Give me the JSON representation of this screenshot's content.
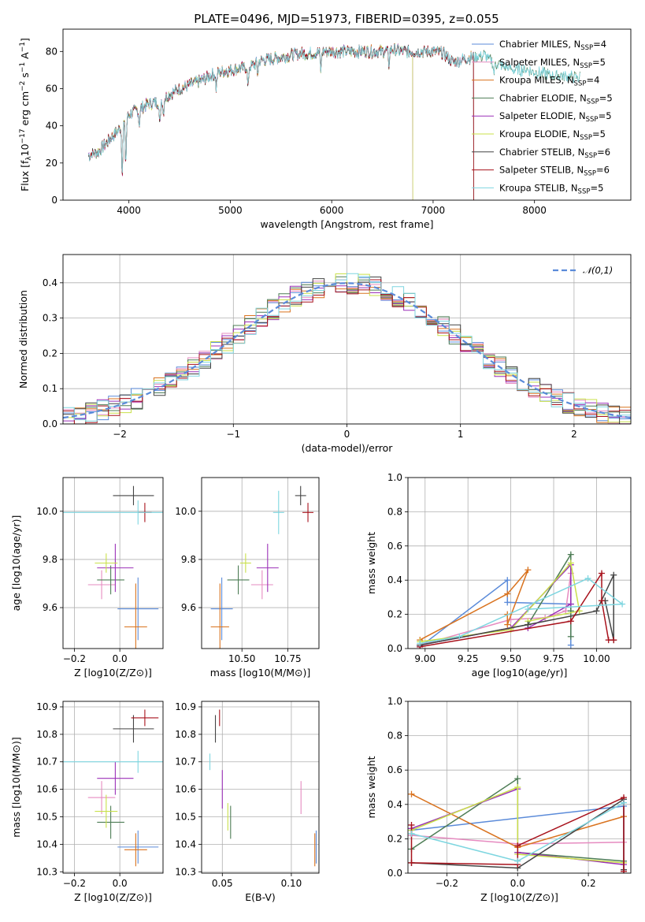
{
  "figure": {
    "title": "PLATE=0496, MJD=51973, FIBERID=0395, z=0.055"
  },
  "series_styles": [
    {
      "name": "Chabrier MILES",
      "color": "#5b8bd9",
      "nssp": "4"
    },
    {
      "name": "Salpeter MILES",
      "color": "#e68bc0",
      "nssp": "5"
    },
    {
      "name": "Kroupa MILES",
      "color": "#d9731f",
      "nssp": "4"
    },
    {
      "name": "Chabrier ELODIE",
      "color": "#4e7d56",
      "nssp": "5"
    },
    {
      "name": "Salpeter ELODIE",
      "color": "#9b30b8",
      "nssp": "5"
    },
    {
      "name": "Kroupa ELODIE",
      "color": "#c9e04a",
      "nssp": "5"
    },
    {
      "name": "Chabrier STELIB",
      "color": "#444444",
      "nssp": "6"
    },
    {
      "name": "Salpeter STELIB",
      "color": "#a8121c",
      "nssp": "6"
    },
    {
      "name": "Kroupa STELIB",
      "color": "#7ed6e0",
      "nssp": "5"
    }
  ],
  "chart_data": [
    {
      "id": "spectrum",
      "type": "line",
      "xlabel": "wavelength [Angstrom, rest frame]",
      "ylabel": "Flux [f_λ10^-17 erg cm^-2 s^-1 A^-1]",
      "xlim": [
        3350,
        8950
      ],
      "ylim": [
        0,
        92
      ],
      "xticks": [
        4000,
        5000,
        6000,
        7000,
        8000
      ],
      "yticks": [
        0,
        20,
        40,
        60,
        80
      ],
      "continuum": [
        [
          3600,
          24
        ],
        [
          3700,
          26
        ],
        [
          3800,
          32
        ],
        [
          3900,
          38
        ],
        [
          4000,
          46
        ],
        [
          4100,
          49
        ],
        [
          4200,
          52
        ],
        [
          4300,
          53
        ],
        [
          4400,
          57
        ],
        [
          4500,
          60
        ],
        [
          4600,
          62
        ],
        [
          4700,
          64
        ],
        [
          4800,
          67
        ],
        [
          4900,
          69
        ],
        [
          5000,
          70
        ],
        [
          5100,
          71
        ],
        [
          5200,
          72
        ],
        [
          5300,
          75
        ],
        [
          5400,
          76
        ],
        [
          5500,
          77
        ],
        [
          5600,
          78
        ],
        [
          5700,
          79
        ],
        [
          5800,
          79
        ],
        [
          5900,
          80
        ],
        [
          6000,
          80
        ],
        [
          6100,
          80
        ],
        [
          6200,
          80
        ],
        [
          6300,
          80
        ],
        [
          6400,
          80
        ],
        [
          6500,
          80
        ],
        [
          6600,
          81
        ],
        [
          6700,
          80
        ],
        [
          6800,
          80
        ],
        [
          6900,
          80
        ],
        [
          7000,
          80
        ],
        [
          7100,
          79
        ],
        [
          7200,
          74
        ],
        [
          7300,
          76
        ],
        [
          7400,
          77
        ],
        [
          7500,
          78
        ],
        [
          7600,
          74
        ],
        [
          7700,
          72
        ],
        [
          7800,
          70
        ],
        [
          7900,
          70
        ],
        [
          8000,
          69
        ],
        [
          8100,
          68
        ],
        [
          8200,
          67
        ],
        [
          8300,
          67
        ],
        [
          8400,
          66
        ]
      ],
      "absorption_dips": [
        [
          3934,
          26
        ],
        [
          3969,
          24
        ],
        [
          4102,
          8
        ],
        [
          4305,
          14
        ],
        [
          4340,
          8
        ],
        [
          4861,
          8
        ],
        [
          5175,
          12
        ],
        [
          5270,
          6
        ],
        [
          5893,
          10
        ],
        [
          6563,
          8
        ],
        [
          7600,
          6
        ]
      ],
      "end_wavelength": [
        7400,
        7400,
        7400,
        8450,
        6800,
        6800,
        7400,
        7400,
        8450
      ],
      "legend_location": "upper right",
      "legend_entries": [
        "Chabrier MILES, N_SSP=4",
        "Salpeter MILES, N_SSP=5",
        "Kroupa MILES, N_SSP=4",
        "Chabrier ELODIE, N_SSP=5",
        "Salpeter ELODIE, N_SSP=5",
        "Kroupa ELODIE, N_SSP=5",
        "Chabrier STELIB, N_SSP=6",
        "Salpeter STELIB, N_SSP=6",
        "Kroupa STELIB, N_SSP=5"
      ]
    },
    {
      "id": "residuals",
      "type": "histogram",
      "xlabel": "(data-model)/error",
      "ylabel": "Normed distribution",
      "xlim": [
        -2.5,
        2.5
      ],
      "ylim": [
        0,
        0.48
      ],
      "xticks": [
        -2,
        -1,
        0,
        1,
        2
      ],
      "yticks": [
        0.0,
        0.1,
        0.2,
        0.3,
        0.4
      ],
      "grid": true,
      "bin_width": 0.1,
      "reference_curve": {
        "label": "𝒩(0,1)",
        "style": "dashed",
        "color": "#5b8bd9"
      },
      "legend_location": "upper right"
    },
    {
      "id": "age_vs_Z",
      "type": "scatter",
      "xlabel": "Z [log10(Z/Z⊙)]",
      "ylabel": "age [log10(age/yr)]",
      "xlim": [
        -0.25,
        0.19
      ],
      "ylim": [
        9.43,
        10.14
      ],
      "xticks": [
        -0.2,
        0.0
      ],
      "yticks": [
        9.6,
        9.8,
        10.0
      ],
      "grid": true,
      "points": [
        {
          "x": 0.08,
          "y": 9.595,
          "xerr": 0.09,
          "yerr": 0.13
        },
        {
          "x": -0.08,
          "y": 9.695,
          "xerr": 0.06,
          "yerr": 0.06
        },
        {
          "x": 0.07,
          "y": 9.52,
          "xerr": 0.05,
          "yerr": 0.18
        },
        {
          "x": -0.04,
          "y": 9.715,
          "xerr": 0.06,
          "yerr": 0.06
        },
        {
          "x": -0.02,
          "y": 9.765,
          "xerr": 0.08,
          "yerr": 0.1
        },
        {
          "x": -0.06,
          "y": 9.785,
          "xerr": 0.05,
          "yerr": 0.04
        },
        {
          "x": 0.06,
          "y": 10.065,
          "xerr": 0.09,
          "yerr": 0.04
        },
        {
          "x": 0.11,
          "y": 9.995,
          "xerr": 0.03,
          "yerr": 0.04
        },
        {
          "x": 0.08,
          "y": 9.995,
          "xerr": 0.33,
          "yerr": 0.05
        }
      ]
    },
    {
      "id": "age_vs_mass",
      "type": "scatter",
      "xlabel": "mass [log10(M/M⊙)]",
      "ylabel": "",
      "xlim": [
        10.28,
        10.92
      ],
      "ylim": [
        9.43,
        10.14
      ],
      "xticks": [
        10.5,
        10.75
      ],
      "yticks": [
        9.6,
        9.8,
        10.0
      ],
      "grid": true,
      "points": [
        {
          "x": 10.39,
          "y": 9.595,
          "xerr": 0.06,
          "yerr": 0.13
        },
        {
          "x": 10.61,
          "y": 9.695,
          "xerr": 0.06,
          "yerr": 0.06
        },
        {
          "x": 10.38,
          "y": 9.52,
          "xerr": 0.05,
          "yerr": 0.18
        },
        {
          "x": 10.48,
          "y": 9.715,
          "xerr": 0.06,
          "yerr": 0.06
        },
        {
          "x": 10.64,
          "y": 9.765,
          "xerr": 0.06,
          "yerr": 0.1
        },
        {
          "x": 10.52,
          "y": 9.785,
          "xerr": 0.03,
          "yerr": 0.04
        },
        {
          "x": 10.82,
          "y": 10.065,
          "xerr": 0.03,
          "yerr": 0.04
        },
        {
          "x": 10.86,
          "y": 9.995,
          "xerr": 0.03,
          "yerr": 0.04
        },
        {
          "x": 10.7,
          "y": 9.995,
          "xerr": 0.03,
          "yerr": 0.09
        }
      ]
    },
    {
      "id": "mass_weight_vs_age",
      "type": "line",
      "xlabel": "age [log10(age/yr)]",
      "ylabel": "mass weight",
      "xlim": [
        8.9,
        10.2
      ],
      "ylim": [
        0,
        1.0
      ],
      "xticks": [
        9.0,
        9.25,
        9.5,
        9.75,
        10.0
      ],
      "yticks": [
        0.0,
        0.2,
        0.4,
        0.6,
        0.8,
        1.0
      ],
      "grid": true,
      "series": [
        {
          "points": [
            [
              8.97,
              0.01
            ],
            [
              9.48,
              0.4
            ],
            [
              9.48,
              0.27
            ],
            [
              9.85,
              0.26
            ],
            [
              9.85,
              0.02
            ]
          ]
        },
        {
          "points": [
            [
              8.97,
              0.02
            ],
            [
              9.5,
              0.17
            ],
            [
              9.7,
              0.18
            ],
            [
              9.82,
              0.22
            ],
            [
              9.85,
              0.44
            ]
          ]
        },
        {
          "points": [
            [
              8.97,
              0.05
            ],
            [
              9.48,
              0.32
            ],
            [
              9.6,
              0.46
            ],
            [
              9.48,
              0.14
            ],
            [
              9.48,
              0.2
            ]
          ]
        },
        {
          "points": [
            [
              8.97,
              0.02
            ],
            [
              9.6,
              0.14
            ],
            [
              9.85,
              0.55
            ],
            [
              9.85,
              0.22
            ],
            [
              9.85,
              0.07
            ]
          ]
        },
        {
          "points": [
            [
              8.97,
              0.02
            ],
            [
              9.5,
              0.12
            ],
            [
              9.85,
              0.49
            ],
            [
              9.85,
              0.26
            ],
            [
              9.6,
              0.12
            ]
          ]
        },
        {
          "points": [
            [
              8.97,
              0.04
            ],
            [
              9.5,
              0.11
            ],
            [
              9.85,
              0.5
            ],
            [
              9.9,
              0.22
            ],
            [
              9.6,
              0.16
            ]
          ]
        },
        {
          "points": [
            [
              8.97,
              0.02
            ],
            [
              9.6,
              0.14
            ],
            [
              10.0,
              0.22
            ],
            [
              10.1,
              0.43
            ],
            [
              10.1,
              0.05
            ],
            [
              10.05,
              0.28
            ]
          ]
        },
        {
          "points": [
            [
              8.97,
              0.01
            ],
            [
              9.85,
              0.16
            ],
            [
              10.03,
              0.44
            ],
            [
              10.03,
              0.28
            ],
            [
              10.07,
              0.05
            ],
            [
              10.1,
              0.05
            ]
          ]
        },
        {
          "points": [
            [
              8.97,
              0.03
            ],
            [
              9.2,
              0.07
            ],
            [
              9.95,
              0.41
            ],
            [
              10.15,
              0.26
            ],
            [
              9.6,
              0.23
            ]
          ]
        }
      ]
    },
    {
      "id": "mass_vs_Z",
      "type": "scatter",
      "xlabel": "Z [log10(Z/Z⊙)]",
      "ylabel": "mass [log10(M/M⊙)]",
      "xlim": [
        -0.25,
        0.19
      ],
      "ylim": [
        10.295,
        10.92
      ],
      "xticks": [
        -0.2,
        0.0
      ],
      "yticks": [
        10.3,
        10.4,
        10.5,
        10.6,
        10.7,
        10.8,
        10.9
      ],
      "grid": true,
      "points": [
        {
          "x": 0.08,
          "y": 10.39,
          "xerr": 0.09,
          "yerr": 0.06
        },
        {
          "x": -0.08,
          "y": 10.57,
          "xerr": 0.06,
          "yerr": 0.06
        },
        {
          "x": 0.07,
          "y": 10.38,
          "xerr": 0.05,
          "yerr": 0.06
        },
        {
          "x": -0.04,
          "y": 10.48,
          "xerr": 0.06,
          "yerr": 0.06
        },
        {
          "x": -0.02,
          "y": 10.64,
          "xerr": 0.08,
          "yerr": 0.06
        },
        {
          "x": -0.06,
          "y": 10.52,
          "xerr": 0.05,
          "yerr": 0.06
        },
        {
          "x": 0.06,
          "y": 10.82,
          "xerr": 0.09,
          "yerr": 0.05
        },
        {
          "x": 0.11,
          "y": 10.86,
          "xerr": 0.06,
          "yerr": 0.03
        },
        {
          "x": 0.08,
          "y": 10.7,
          "xerr": 0.33,
          "yerr": 0.04
        }
      ]
    },
    {
      "id": "mass_vs_ebv",
      "type": "scatter",
      "xlabel": "E(B-V)",
      "ylabel": "",
      "xlim": [
        0.035,
        0.12
      ],
      "ylim": [
        10.295,
        10.92
      ],
      "xticks": [
        0.05,
        0.1
      ],
      "yticks": [
        10.3,
        10.4,
        10.5,
        10.6,
        10.7,
        10.8,
        10.9
      ],
      "grid": true,
      "points": [
        {
          "x": 0.118,
          "y": 10.39,
          "xerr": 0.0,
          "yerr": 0.06
        },
        {
          "x": 0.107,
          "y": 10.57,
          "xerr": 0.0,
          "yerr": 0.06
        },
        {
          "x": 0.117,
          "y": 10.38,
          "xerr": 0.0,
          "yerr": 0.06
        },
        {
          "x": 0.056,
          "y": 10.48,
          "xerr": 0.0,
          "yerr": 0.06
        },
        {
          "x": 0.05,
          "y": 10.6,
          "xerr": 0.0,
          "yerr": 0.07
        },
        {
          "x": 0.054,
          "y": 10.5,
          "xerr": 0.0,
          "yerr": 0.05
        },
        {
          "x": 0.045,
          "y": 10.82,
          "xerr": 0.0,
          "yerr": 0.05
        },
        {
          "x": 0.048,
          "y": 10.86,
          "xerr": 0.0,
          "yerr": 0.03
        },
        {
          "x": 0.041,
          "y": 10.7,
          "xerr": 0.0,
          "yerr": 0.03
        }
      ]
    },
    {
      "id": "mass_weight_vs_Z",
      "type": "line",
      "xlabel": "Z [log10(Z/Z⊙)]",
      "ylabel": "mass weight",
      "xlim": [
        -0.31,
        0.32
      ],
      "ylim": [
        0,
        1.0
      ],
      "xticks": [
        -0.2,
        0.0,
        0.2
      ],
      "yticks": [
        0.0,
        0.2,
        0.4,
        0.6,
        0.8,
        1.0
      ],
      "grid": true,
      "series": [
        {
          "points": [
            [
              -0.3,
              0.25
            ],
            [
              0.3,
              0.39
            ],
            [
              0.3,
              0.02
            ]
          ]
        },
        {
          "points": [
            [
              -0.3,
              0.22
            ],
            [
              0.0,
              0.17
            ],
            [
              0.3,
              0.18
            ]
          ]
        },
        {
          "points": [
            [
              -0.3,
              0.46
            ],
            [
              0.0,
              0.15
            ],
            [
              0.3,
              0.33
            ]
          ]
        },
        {
          "points": [
            [
              -0.3,
              0.14
            ],
            [
              0.0,
              0.55
            ],
            [
              0.0,
              0.12
            ],
            [
              0.3,
              0.07
            ]
          ]
        },
        {
          "points": [
            [
              -0.3,
              0.26
            ],
            [
              0.0,
              0.49
            ],
            [
              0.0,
              0.12
            ],
            [
              0.3,
              0.05
            ]
          ]
        },
        {
          "points": [
            [
              -0.3,
              0.25
            ],
            [
              0.0,
              0.5
            ],
            [
              0.0,
              0.11
            ],
            [
              0.3,
              0.06
            ]
          ]
        },
        {
          "points": [
            [
              -0.3,
              0.06
            ],
            [
              0.0,
              0.03
            ],
            [
              0.3,
              0.43
            ],
            [
              0.3,
              0.02
            ]
          ]
        },
        {
          "points": [
            [
              -0.3,
              0.28
            ],
            [
              -0.3,
              0.06
            ],
            [
              0.0,
              0.05
            ],
            [
              0.0,
              0.16
            ],
            [
              0.3,
              0.44
            ],
            [
              0.3,
              0.01
            ]
          ]
        },
        {
          "points": [
            [
              -0.3,
              0.23
            ],
            [
              0.0,
              0.07
            ],
            [
              0.3,
              0.41
            ]
          ]
        }
      ]
    }
  ]
}
